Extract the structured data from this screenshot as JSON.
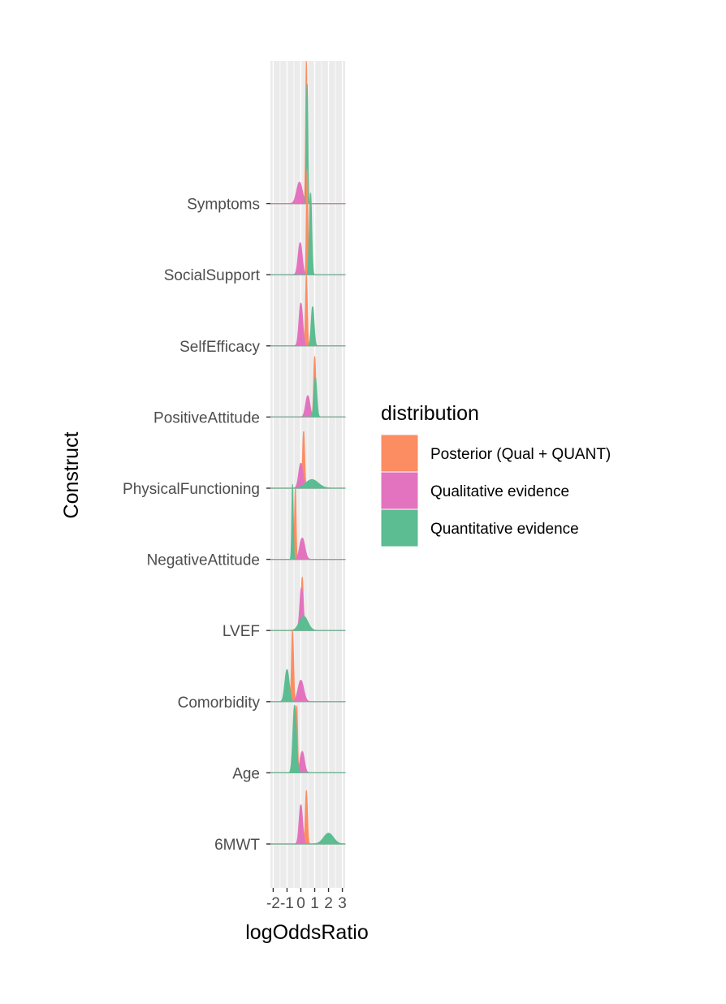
{
  "chart_data": {
    "type": "ridgeline",
    "xlabel": "logOddsRatio",
    "ylabel": "Construct",
    "xlim": [
      -2.2,
      3.2
    ],
    "x_ticks": [
      -2,
      -1,
      0,
      1,
      2,
      3
    ],
    "x_tick_labels": [
      "-2",
      "-1",
      "0",
      "1",
      "2",
      "3"
    ],
    "categories": [
      "6MWT",
      "Age",
      "Comorbidity",
      "LVEF",
      "NegativeAttitude",
      "PhysicalFunctioning",
      "PositiveAttitude",
      "SelfEfficacy",
      "SocialSupport",
      "Symptoms"
    ],
    "grid": true,
    "legend": {
      "title": "distribution",
      "position": "right",
      "entries": [
        {
          "label": "Posterior (Qual + QUANT)",
          "color": "#fc8d62"
        },
        {
          "label": "Qualitative evidence",
          "color": "#e373be"
        },
        {
          "label": "Quantitative evidence",
          "color": "#5cbc92"
        }
      ]
    },
    "series": [
      {
        "name": "Posterior (Qual + QUANT)",
        "color": "#fc8d62",
        "mean": [
          0.4,
          -0.3,
          -0.6,
          0.1,
          -0.4,
          0.2,
          1.0,
          0.4,
          0.45,
          0.4
        ],
        "sd": [
          0.07,
          0.06,
          0.07,
          0.07,
          0.05,
          0.07,
          0.07,
          0.06,
          0.05,
          0.05
        ],
        "height": [
          0.75,
          0.95,
          1.0,
          0.75,
          1.0,
          0.8,
          0.85,
          1.0,
          1.5,
          2.0
        ]
      },
      {
        "name": "Qualitative evidence",
        "color": "#e373be",
        "mean": [
          0.0,
          0.1,
          0.0,
          0.05,
          0.1,
          0.0,
          0.5,
          0.0,
          -0.05,
          -0.1
        ],
        "sd": [
          0.12,
          0.15,
          0.2,
          0.12,
          0.18,
          0.15,
          0.15,
          0.13,
          0.14,
          0.2
        ],
        "height": [
          0.55,
          0.3,
          0.3,
          0.6,
          0.3,
          0.35,
          0.3,
          0.6,
          0.45,
          0.3
        ]
      },
      {
        "name": "Quantitative evidence",
        "color": "#5cbc92",
        "mean": [
          2.0,
          -0.45,
          -1.0,
          0.2,
          -0.6,
          0.8,
          1.05,
          0.85,
          0.7,
          0.45
        ],
        "sd": [
          0.35,
          0.12,
          0.15,
          0.3,
          0.05,
          0.45,
          0.1,
          0.1,
          0.08,
          0.05
        ],
        "height": [
          0.15,
          0.95,
          0.45,
          0.2,
          1.05,
          0.12,
          0.55,
          0.55,
          1.15,
          1.7
        ]
      }
    ]
  }
}
